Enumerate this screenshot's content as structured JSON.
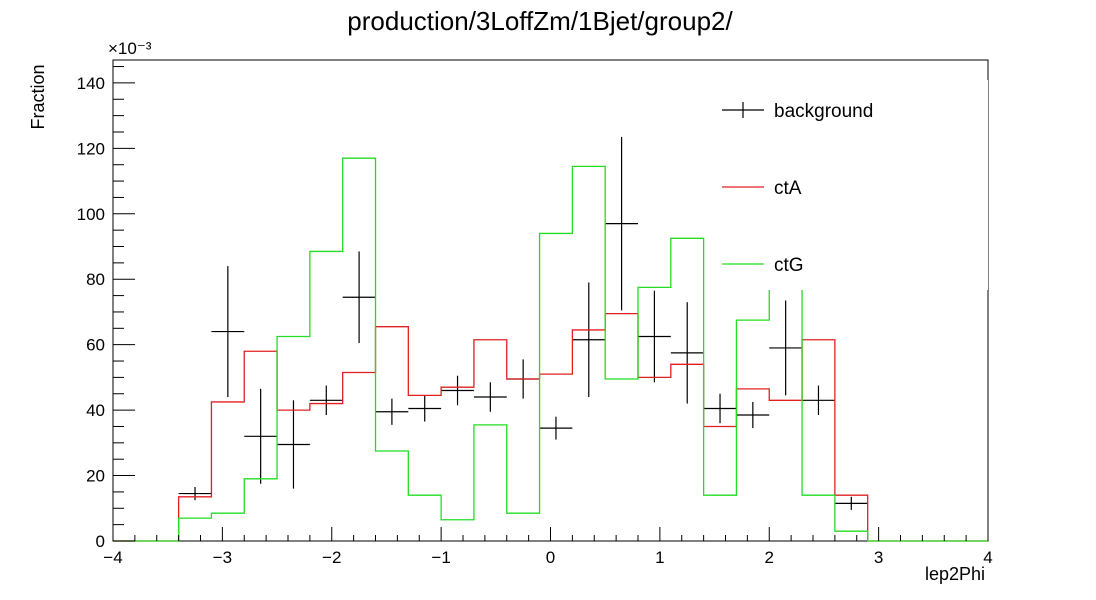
{
  "chart_data": {
    "type": "histogram",
    "title": "production/3LoffZm/1Bjet/group2/",
    "xlabel": "lep2Phi",
    "ylabel": "Fraction",
    "y_exponent": "×10⁻³",
    "xlim": [
      -4,
      4
    ],
    "ylim": [
      0,
      147
    ],
    "x_ticks": [
      -4,
      -3,
      -2,
      -1,
      0,
      1,
      2,
      3,
      4
    ],
    "x_tick_labels": [
      "−4",
      "−3",
      "−2",
      "−1",
      "0",
      "1",
      "2",
      "3",
      "4"
    ],
    "y_ticks": [
      0,
      20,
      40,
      60,
      80,
      100,
      120,
      140
    ],
    "y_tick_labels": [
      "0",
      "20",
      "40",
      "60",
      "80",
      "100",
      "120",
      "140"
    ],
    "grid": false,
    "legend_position": "top-right",
    "bin_edges": [
      -3.4,
      -3.1,
      -2.8,
      -2.5,
      -2.2,
      -1.9,
      -1.6,
      -1.3,
      -1.0,
      -0.7,
      -0.4,
      -0.1,
      0.2,
      0.5,
      0.8,
      1.1,
      1.4,
      1.7,
      2.0,
      2.3,
      2.6,
      2.9,
      3.2
    ],
    "series": [
      {
        "name": "background",
        "style": "errorbar",
        "color": "#000000",
        "values": [
          14.5,
          64,
          32,
          29.5,
          43,
          74.5,
          39.5,
          40.5,
          46,
          44,
          49.5,
          34.5,
          61.5,
          97,
          62.5,
          57.5,
          40.5,
          38.5,
          59,
          43,
          11.5,
          0
        ],
        "errors": [
          2,
          20,
          14.5,
          13.5,
          4.5,
          14,
          4,
          4,
          4.5,
          4.5,
          6,
          3.5,
          17.5,
          26.5,
          14,
          15.5,
          4.5,
          4,
          14.5,
          4.5,
          2,
          0
        ]
      },
      {
        "name": "ctA",
        "style": "step",
        "color": "#e02020",
        "values": [
          13.5,
          42.5,
          58,
          40,
          42,
          51.5,
          65.5,
          44.5,
          47,
          61.5,
          49.5,
          51,
          64.5,
          69.5,
          50,
          54,
          35,
          46.5,
          43,
          61.5,
          14,
          0
        ]
      },
      {
        "name": "ctG",
        "style": "step",
        "color": "#22dd22",
        "values": [
          7,
          8.5,
          19,
          62.5,
          88.5,
          117,
          27.5,
          14,
          6.5,
          35.5,
          8.5,
          94,
          114.5,
          49.5,
          77.5,
          92.5,
          14,
          67.5,
          104.5,
          14,
          3,
          0
        ]
      }
    ]
  }
}
